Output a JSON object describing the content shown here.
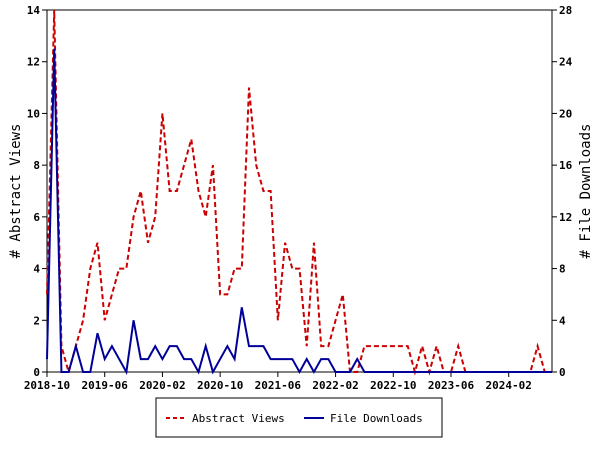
{
  "chart_data": {
    "type": "line",
    "x_start": "2018-10",
    "x_tick_labels": [
      "2018-10",
      "2019-06",
      "2020-02",
      "2020-10",
      "2021-06",
      "2022-02",
      "2022-10",
      "2023-06",
      "2024-02"
    ],
    "xlabel": "",
    "y_left": {
      "label": "# Abstract Views",
      "lim": [
        0,
        14
      ],
      "ticks": [
        "0",
        "2",
        "4",
        "6",
        "8",
        "10",
        "12",
        "14"
      ]
    },
    "y_right": {
      "label": "# File Downloads",
      "lim": [
        0,
        28
      ],
      "ticks": [
        "0",
        "4",
        "8",
        "12",
        "16",
        "20",
        "24",
        "28"
      ]
    },
    "legend_position": "bottom-center",
    "series": [
      {
        "name": "Abstract Views",
        "axis": "left",
        "color": "#cc0000",
        "style": "dashed",
        "values": [
          3,
          14,
          1,
          0,
          1,
          2,
          4,
          5,
          2,
          3,
          4,
          4,
          6,
          7,
          5,
          6,
          10,
          7,
          7,
          8,
          9,
          7,
          6,
          8,
          3,
          3,
          4,
          4,
          11,
          8,
          7,
          7,
          2,
          5,
          4,
          4,
          1,
          5,
          1,
          1,
          2,
          3,
          0,
          0,
          1,
          1,
          1,
          1,
          1,
          1,
          1,
          0,
          1,
          0,
          1,
          0,
          0,
          1,
          0,
          0,
          0,
          0,
          0,
          0,
          0,
          0,
          0,
          0,
          1,
          0,
          0
        ]
      },
      {
        "name": "File Downloads",
        "axis": "right",
        "color": "#000099",
        "style": "solid",
        "values": [
          1,
          25,
          0,
          0,
          2,
          0,
          0,
          3,
          1,
          2,
          1,
          0,
          4,
          1,
          1,
          2,
          1,
          2,
          2,
          1,
          1,
          0,
          2,
          0,
          1,
          2,
          1,
          5,
          2,
          2,
          2,
          1,
          1,
          1,
          1,
          0,
          1,
          0,
          1,
          1,
          0,
          0,
          0,
          1,
          0,
          0,
          0,
          0,
          0,
          0,
          0,
          0,
          0,
          0,
          0,
          0,
          0,
          0,
          0,
          0,
          0,
          0,
          0,
          0,
          0,
          0,
          0,
          0,
          0,
          0,
          0
        ]
      }
    ]
  }
}
